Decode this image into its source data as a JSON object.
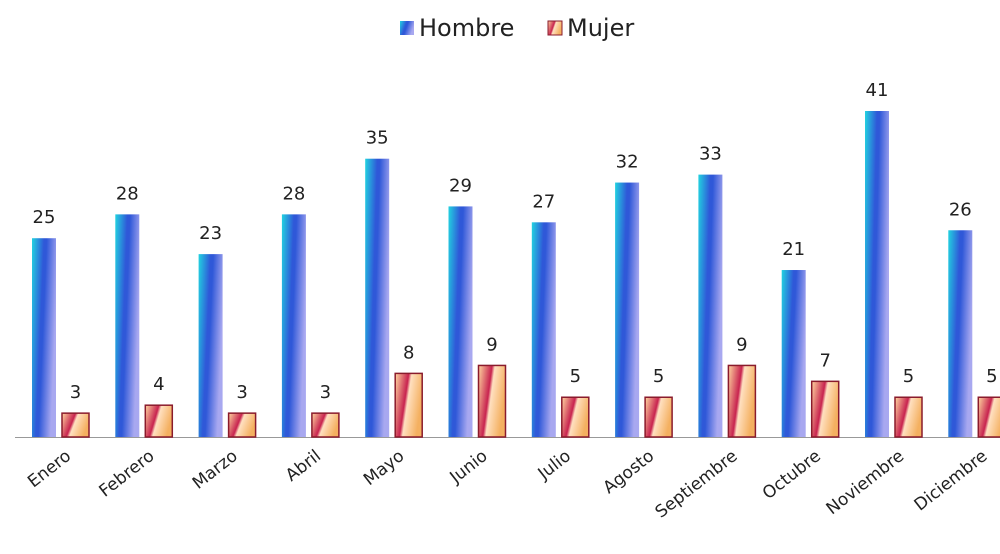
{
  "chart_data": {
    "type": "bar",
    "categories": [
      "Enero",
      "Febrero",
      "Marzo",
      "Abril",
      "Mayo",
      "Junio",
      "Julio",
      "Agosto",
      "Septiembre",
      "Octubre",
      "Noviembre",
      "Diciembre"
    ],
    "series": [
      {
        "name": "Hombre",
        "color": "#2f58d8",
        "values": [
          25,
          28,
          23,
          28,
          35,
          29,
          27,
          32,
          33,
          21,
          41,
          26
        ]
      },
      {
        "name": "Mujer",
        "color": "#c8234f",
        "values": [
          3,
          4,
          3,
          3,
          8,
          9,
          5,
          5,
          9,
          7,
          5,
          5
        ]
      }
    ],
    "legend": "top"
  }
}
